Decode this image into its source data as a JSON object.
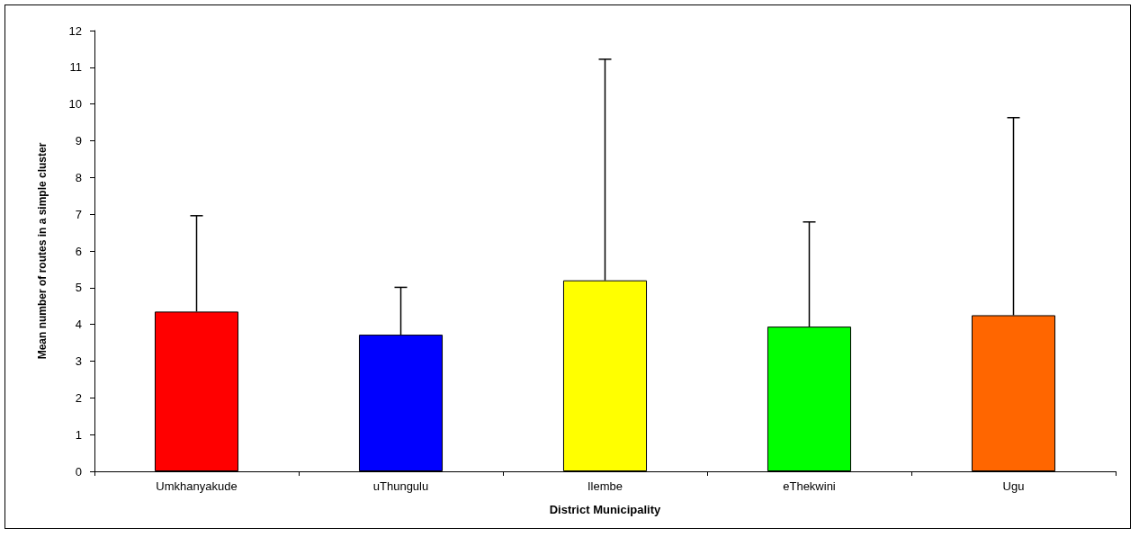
{
  "chart_data": {
    "type": "bar",
    "xlabel": "District Municipality",
    "ylabel": "Mean number of routes in a simple cluster",
    "categories": [
      "Umkhanyakude",
      "uThungulu",
      "Ilembe",
      "eThekwini",
      "Ugu"
    ],
    "values": [
      4.35,
      3.72,
      5.2,
      3.94,
      4.25
    ],
    "colors": [
      "#ff0000",
      "#0000ff",
      "#ffff00",
      "#00ff00",
      "#ff6600"
    ],
    "errors": [
      [
        4.35,
        6.96
      ],
      [
        3.72,
        5.01
      ],
      [
        5.2,
        11.22
      ],
      [
        3.94,
        6.79
      ],
      [
        4.25,
        9.63
      ]
    ],
    "ylim": [
      0,
      12
    ],
    "yticks": [
      0,
      1,
      2,
      3,
      4,
      5,
      6,
      7,
      8,
      9,
      10,
      11,
      12
    ],
    "grid": false
  }
}
